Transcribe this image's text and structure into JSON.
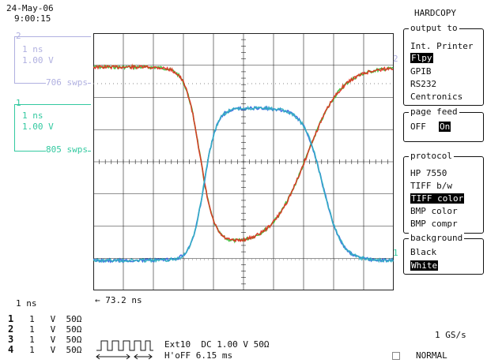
{
  "header": {
    "date": "24-May-06",
    "time": "9:00:15"
  },
  "channel2": {
    "number": "2",
    "timebase": "1 ns",
    "volts": "1.00 V",
    "sweeps": "706 swps",
    "color": "#b0b0e0"
  },
  "channel1": {
    "number": "1",
    "timebase": "1 ns",
    "volts": "1.00 V",
    "sweeps": "805 swps",
    "color": "#33c9a0"
  },
  "menu": {
    "title": "HARDCOPY",
    "output": {
      "title": "output to",
      "items": [
        "Int. Printer",
        "Flpy",
        "GPIB",
        "RS232",
        "Centronics"
      ],
      "selected": 1
    },
    "page_feed": {
      "title": "page feed",
      "off": "OFF",
      "on": "On"
    },
    "protocol": {
      "title": "protocol",
      "items": [
        "HP 7550",
        "TIFF b/w",
        "TIFF color",
        "BMP color",
        "BMP compr"
      ],
      "selected": 2
    },
    "background": {
      "title": "background",
      "items": [
        "Black",
        "White"
      ],
      "selected": 1
    }
  },
  "markers": {
    "right_ch2": "2",
    "right_ch1": "1"
  },
  "bottom": {
    "timebase": "1 ns",
    "delay": "← 73.2 ns",
    "channels": [
      {
        "num": "1",
        "v": "1",
        "unit": "V",
        "imp": "50Ω"
      },
      {
        "num": "2",
        "v": "1",
        "unit": "V",
        "imp": "50Ω"
      },
      {
        "num": "3",
        "v": "1",
        "unit": "V",
        "imp": "50Ω"
      },
      {
        "num": "4",
        "v": "1",
        "unit": "V",
        "imp": "50Ω"
      }
    ],
    "trigger_line1": "Ext10  DC 1.00 V 50Ω",
    "trigger_line2": "H'oFF 6.15 ms",
    "sample_rate": "1 GS/s",
    "mode": "NORMAL",
    "mode_icon": "square-icon"
  },
  "colors": {
    "red": "#e03020",
    "green": "#30c030",
    "blue": "#3060e0",
    "cyan": "#30b0c0",
    "grid": "#222",
    "dot": "#888"
  }
}
